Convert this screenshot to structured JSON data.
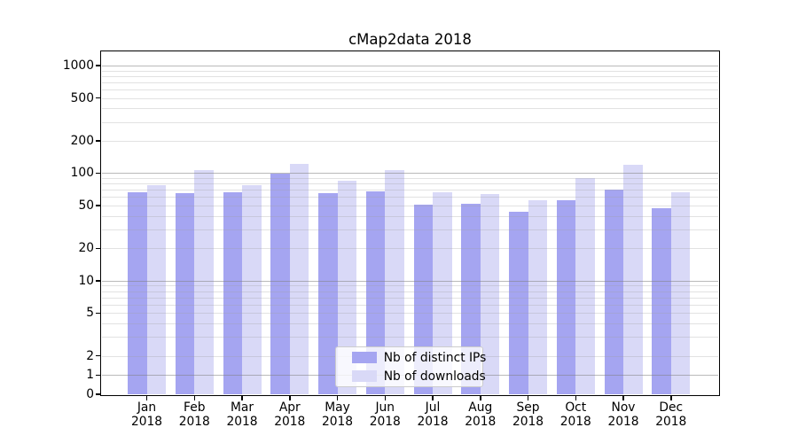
{
  "title": "cMap2data 2018",
  "legend": {
    "items": [
      {
        "label": "Nb of distinct IPs",
        "swatch_color": "#a5a5f1"
      },
      {
        "label": "Nb of downloads",
        "swatch_color": "#d9d9f7"
      }
    ]
  },
  "axes": {
    "y_tick_labels": [
      "0",
      "1",
      "2",
      "5",
      "10",
      "20",
      "50",
      "100",
      "200",
      "500",
      "1000"
    ],
    "x_tick_line2": "2018"
  },
  "chart_data": {
    "type": "bar",
    "title": "cMap2data 2018",
    "categories": [
      "Jan 2018",
      "Feb 2018",
      "Mar 2018",
      "Apr 2018",
      "May 2018",
      "Jun 2018",
      "Jul 2018",
      "Aug 2018",
      "Sep 2018",
      "Oct 2018",
      "Nov 2018",
      "Dec 2018"
    ],
    "series": [
      {
        "name": "Nb of distinct IPs",
        "color": "#a5a5f1",
        "values": [
          66,
          65,
          66,
          99,
          65,
          68,
          51,
          52,
          44,
          56,
          70,
          47
        ]
      },
      {
        "name": "Nb of downloads",
        "color": "#d9d9f7",
        "values": [
          78,
          107,
          78,
          121,
          85,
          107,
          67,
          64,
          56,
          90,
          119,
          66
        ]
      }
    ],
    "xlabel": "",
    "ylabel": "",
    "yscale": "symlog (logarithmic above 2, linear from 0 to 2)",
    "yticks": [
      0,
      1,
      2,
      5,
      10,
      20,
      50,
      100,
      200,
      500,
      1000
    ],
    "major_grid_values": [
      1,
      10,
      100,
      1000
    ],
    "minor_grid_decades": [
      1,
      10,
      100
    ],
    "ylim": [
      0,
      1340
    ],
    "grid": "on",
    "legend_position": "lower center inside axes"
  },
  "colors": {
    "major_grid": "rgba(130,130,130,0.55)",
    "minor_grid": "rgba(160,160,160,0.30)",
    "spine": "#000000",
    "legend_border": "#cccccc",
    "legend_background": "rgba(255,255,255,0.8)"
  }
}
